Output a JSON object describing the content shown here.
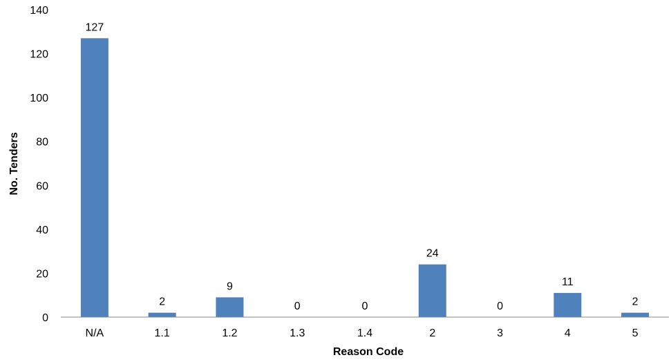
{
  "chart_data": {
    "type": "bar",
    "title": "",
    "xlabel": "Reason Code",
    "ylabel": "No. Tenders",
    "categories": [
      "N/A",
      "1.1",
      "1.2",
      "1.3",
      "1.4",
      "2",
      "3",
      "4",
      "5"
    ],
    "values": [
      127,
      2,
      9,
      0,
      0,
      24,
      0,
      11,
      2
    ],
    "data_labels": [
      "127",
      "2",
      "9",
      "0",
      "0",
      "24",
      "0",
      "11",
      "2"
    ],
    "ylim": [
      0,
      140
    ],
    "y_ticks": [
      0,
      20,
      40,
      60,
      80,
      100,
      120,
      140
    ],
    "y_tick_labels": [
      "0",
      "20",
      "40",
      "60",
      "80",
      "100",
      "120",
      "140"
    ],
    "grid": false,
    "legend": "none",
    "colors": {
      "bar": "#4f81bd",
      "axis": "#868686",
      "text": "#000000"
    }
  }
}
